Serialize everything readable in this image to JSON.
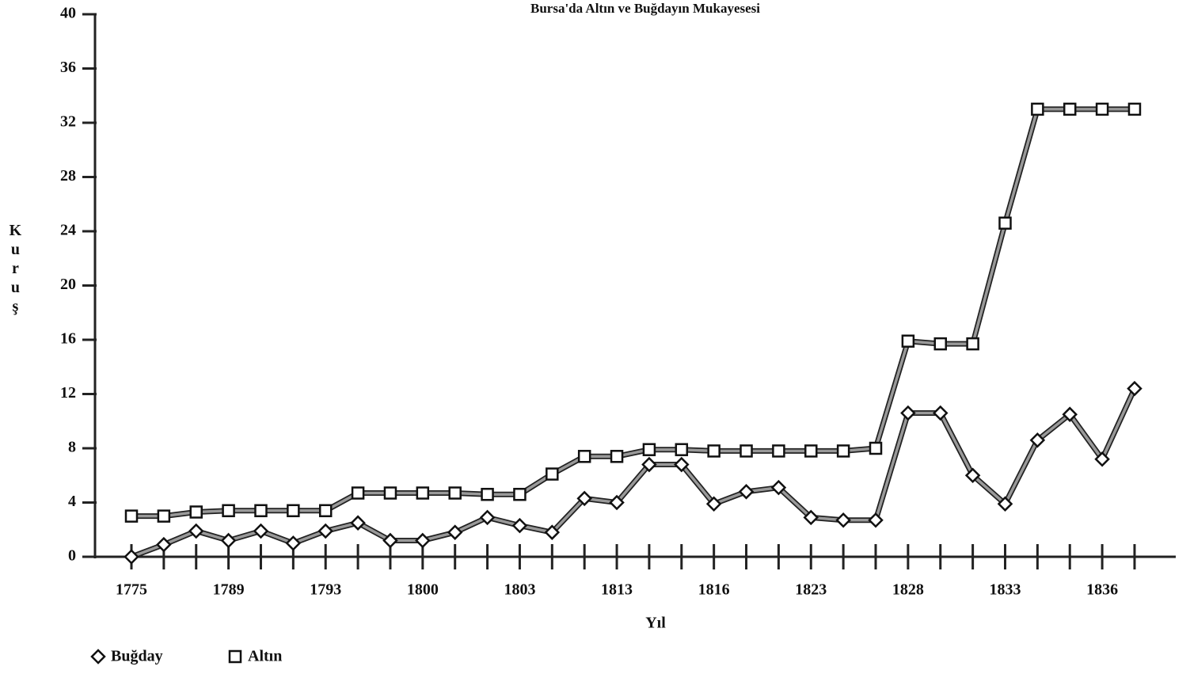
{
  "chart_data": {
    "type": "line",
    "title": "Bursa'da Altın ve Buğdayın Mukayesesi",
    "x_label": "Yıl",
    "y_label": "Kuruş",
    "categories": [
      "1775",
      null,
      null,
      "1789",
      null,
      null,
      "1793",
      null,
      null,
      "1800",
      null,
      null,
      "1803",
      null,
      null,
      "1813",
      null,
      null,
      "1816",
      null,
      null,
      "1823",
      null,
      null,
      "1828",
      null,
      null,
      "1833",
      null,
      null,
      "1836",
      null
    ],
    "series": [
      {
        "name": "Buğday",
        "color": "#999999",
        "marker": "diamond",
        "values": [
          0,
          0.9,
          1.9,
          1.2,
          1.9,
          1.0,
          1.9,
          2.5,
          1.2,
          1.2,
          1.8,
          2.9,
          2.3,
          1.8,
          4.3,
          4.0,
          6.8,
          6.8,
          3.9,
          4.8,
          5.1,
          2.9,
          2.7,
          2.7,
          10.6,
          10.6,
          6.0,
          3.9,
          8.6,
          10.5,
          7.2,
          12.4
        ]
      },
      {
        "name": "Altın",
        "color": "#999999",
        "marker": "square",
        "values": [
          3.0,
          3.0,
          3.3,
          3.4,
          3.4,
          3.4,
          3.4,
          4.7,
          4.7,
          4.7,
          4.7,
          4.6,
          4.6,
          6.1,
          7.4,
          7.4,
          7.9,
          7.9,
          7.8,
          7.8,
          7.8,
          7.8,
          7.8,
          8.0,
          15.9,
          15.7,
          15.7,
          24.6,
          33.0,
          33.0,
          33.0,
          33.0
        ]
      }
    ],
    "ylim": [
      0,
      40
    ],
    "yticks": [
      0,
      4,
      8,
      12,
      16,
      20,
      24,
      28,
      32,
      36,
      40
    ],
    "legend": "bottom-left",
    "grid": false
  }
}
